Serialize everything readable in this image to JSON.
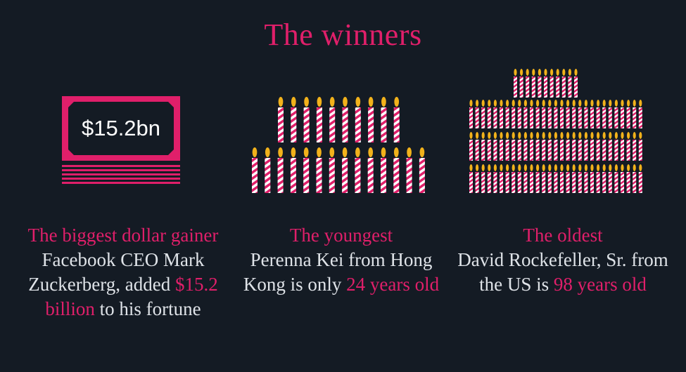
{
  "title": "The winners",
  "money": {
    "bill_label": "$15.2bn",
    "highlight_lead": "The biggest dollar gainer",
    "text_1": " Facebook CEO Mark Zuckerberg, added ",
    "highlight_amount": "$15.2 billion",
    "text_2": " to his fortune"
  },
  "youngest": {
    "heading": "The youngest",
    "text_1": "Perenna Kei from Hong Kong is only ",
    "highlight_age": "24 years old",
    "age_value": 24
  },
  "oldest": {
    "heading": "The oldest",
    "text_1": "David Rockefeller, Sr. from the US is ",
    "highlight_age": "98 years old",
    "age_value": 98
  },
  "colors": {
    "accent": "#e01f6a",
    "background": "#141b24",
    "text": "#dfe3e8",
    "flame": "#f2b21b",
    "candle": "#ffffff"
  },
  "icons": {
    "bill": "banknote-icon",
    "candle": "birthday-candle-icon"
  }
}
